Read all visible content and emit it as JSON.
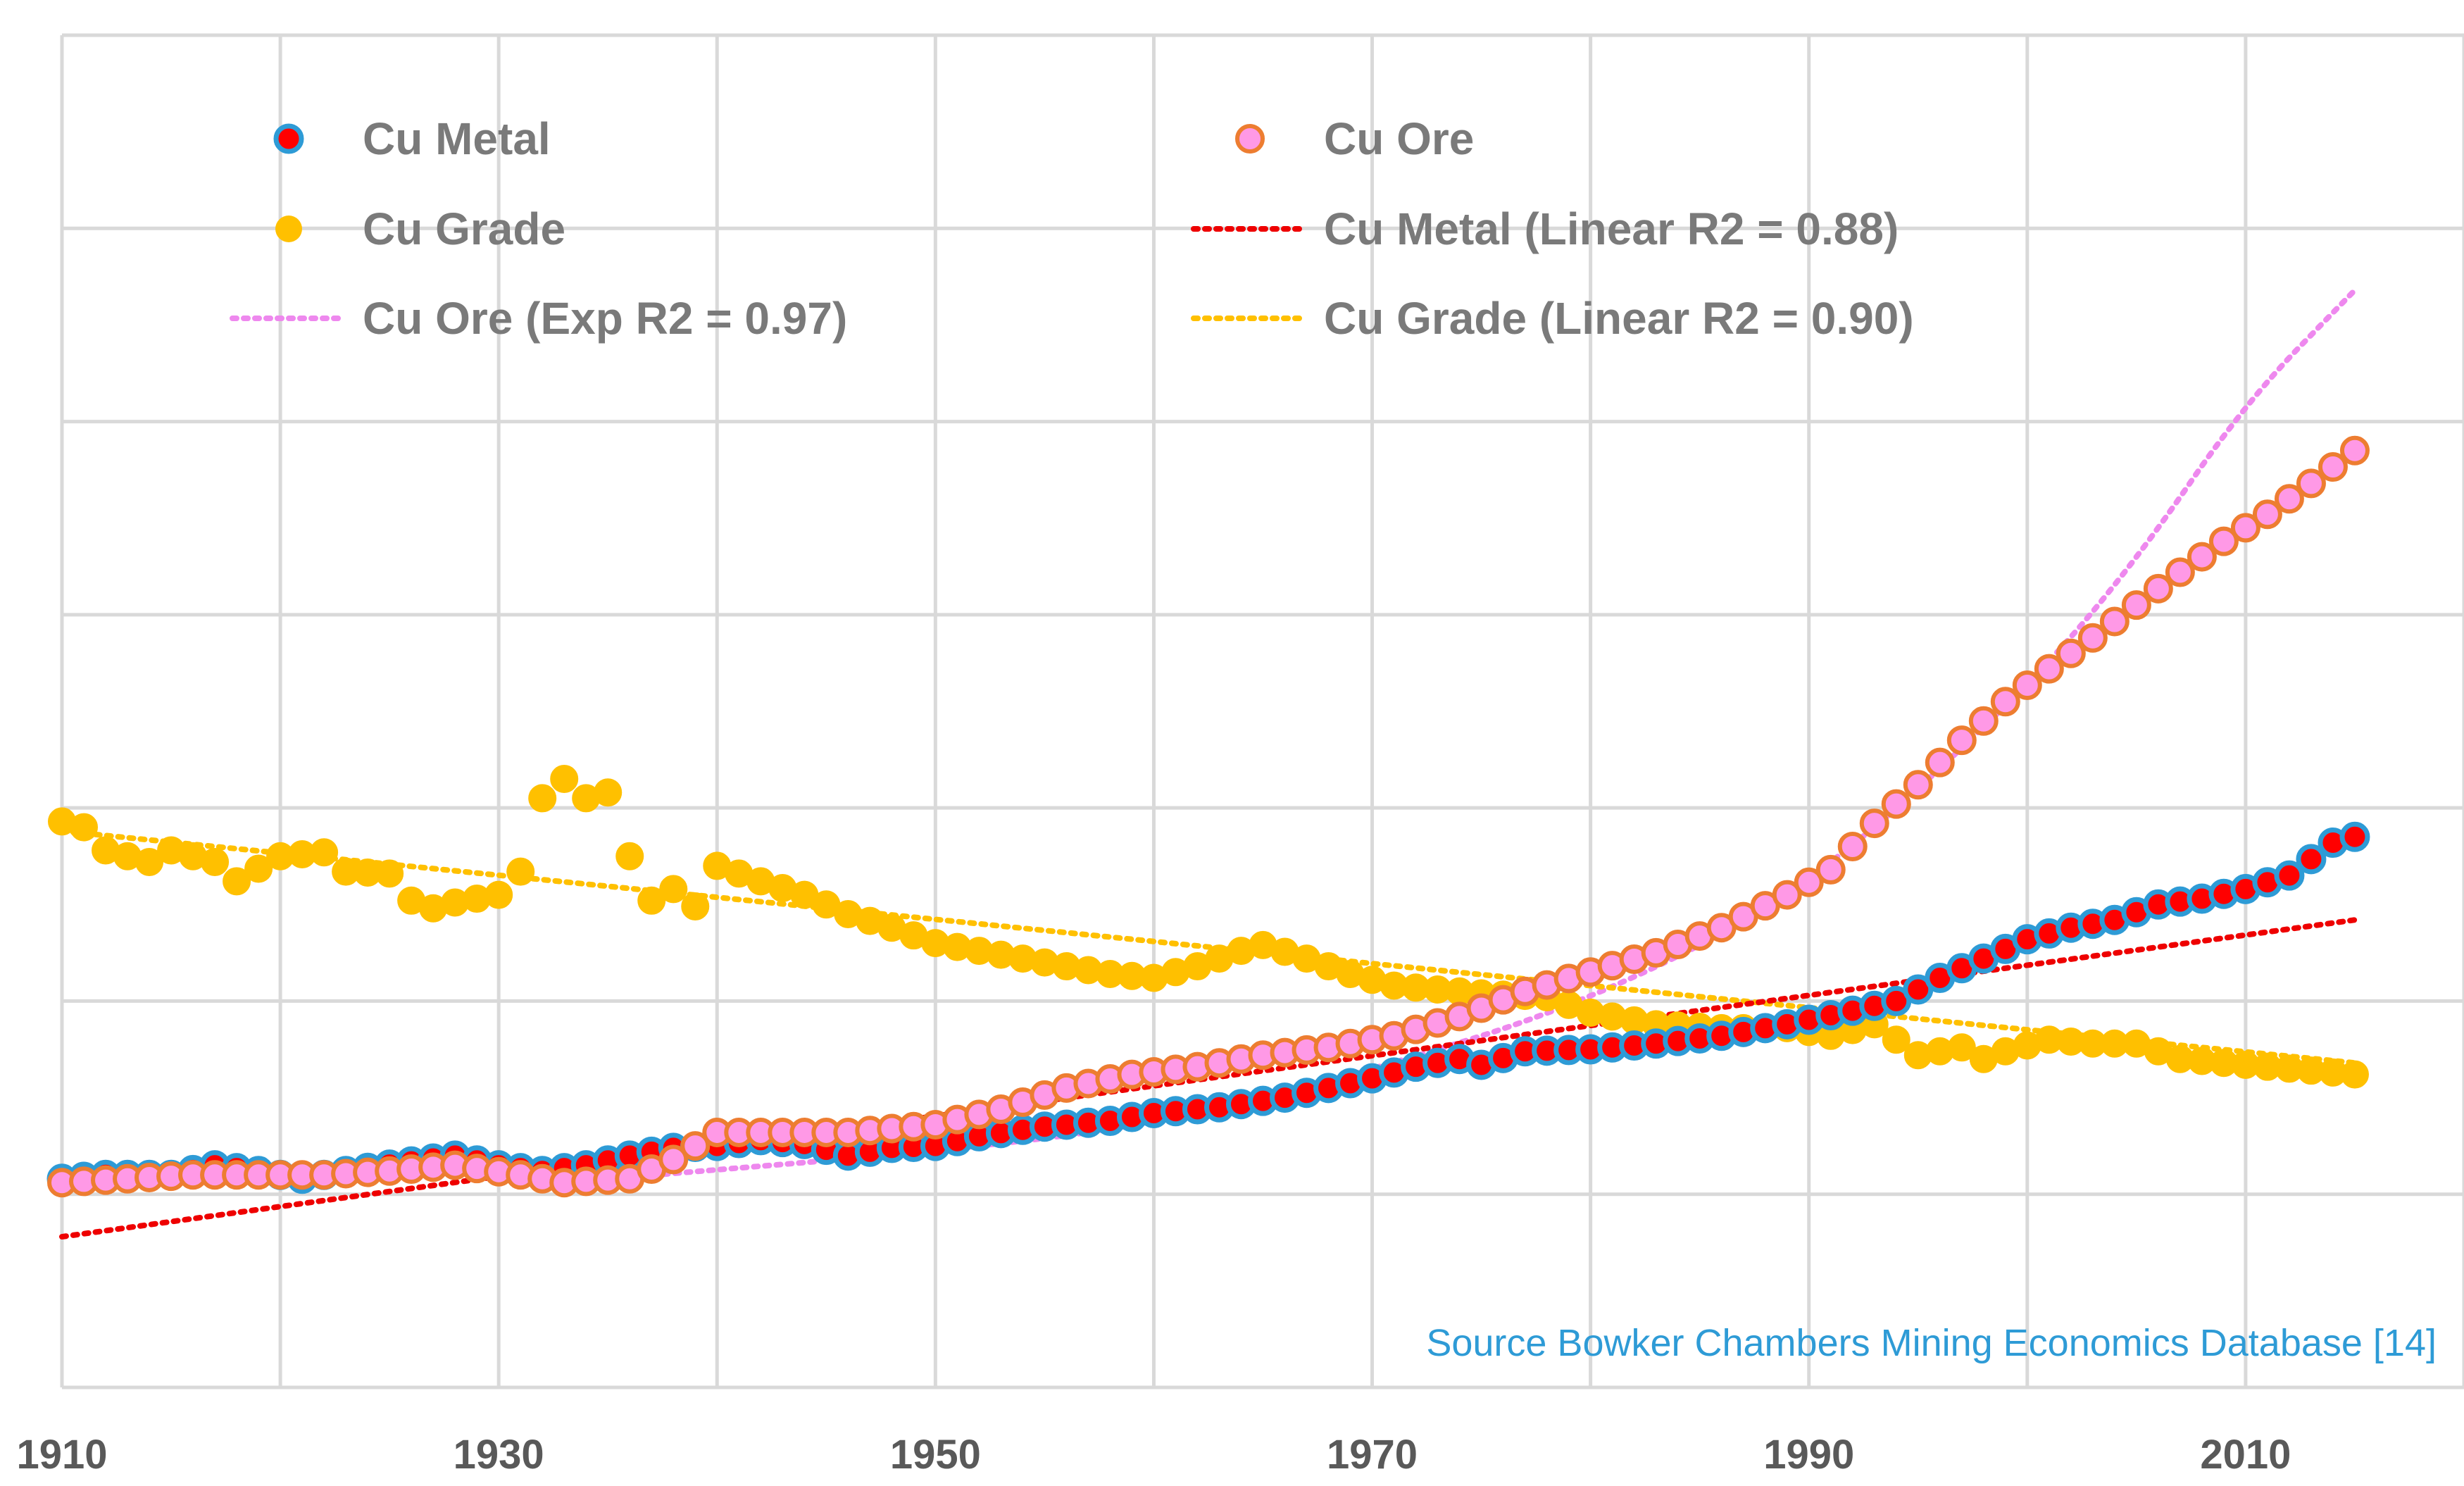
{
  "colors": {
    "grid": "#d9d9d9",
    "metal_fill": "#ff0000",
    "metal_edge": "#2e9bd6",
    "ore_fill": "#ff99e6",
    "ore_edge": "#ed7d31",
    "grade": "#ffc000",
    "metal_trend": "#ee0000",
    "ore_trend": "#ee88ee",
    "grade_trend": "#ffc000",
    "source_text": "#2e9bd6"
  },
  "chart_data": {
    "type": "scatter",
    "title": "",
    "xlabel": "",
    "ylabel": "",
    "xlim": [
      1910,
      2020
    ],
    "ylim": [
      -1,
      6
    ],
    "x_ticks": [
      "1910",
      "1930",
      "1950",
      "1970",
      "1990",
      "2010"
    ],
    "grid": true,
    "legend_position": "top",
    "note": "y values in relative index units read from gridlines (no y tick labels shown)",
    "series": [
      {
        "name": "Cu Metal",
        "marker": "circle-filled",
        "points": [
          [
            1910,
            0.08
          ],
          [
            1912,
            0.1
          ],
          [
            1915,
            0.1
          ],
          [
            1917,
            0.15
          ],
          [
            1919,
            0.12
          ],
          [
            1921,
            0.08
          ],
          [
            1923,
            0.12
          ],
          [
            1926,
            0.17
          ],
          [
            1928,
            0.2
          ],
          [
            1930,
            0.15
          ],
          [
            1932,
            0.12
          ],
          [
            1934,
            0.15
          ],
          [
            1936,
            0.2
          ],
          [
            1938,
            0.24
          ],
          [
            1940,
            0.25
          ],
          [
            1942,
            0.28
          ],
          [
            1944,
            0.26
          ],
          [
            1946,
            0.2
          ],
          [
            1948,
            0.24
          ],
          [
            1950,
            0.25
          ],
          [
            1952,
            0.3
          ],
          [
            1955,
            0.35
          ],
          [
            1958,
            0.38
          ],
          [
            1960,
            0.42
          ],
          [
            1963,
            0.45
          ],
          [
            1966,
            0.5
          ],
          [
            1968,
            0.55
          ],
          [
            1970,
            0.6
          ],
          [
            1972,
            0.66
          ],
          [
            1974,
            0.7
          ],
          [
            1975,
            0.67
          ],
          [
            1977,
            0.74
          ],
          [
            1980,
            0.75
          ],
          [
            1983,
            0.78
          ],
          [
            1986,
            0.82
          ],
          [
            1989,
            0.88
          ],
          [
            1992,
            0.95
          ],
          [
            1994,
            1.0
          ],
          [
            1996,
            1.12
          ],
          [
            1998,
            1.22
          ],
          [
            2000,
            1.32
          ],
          [
            2002,
            1.38
          ],
          [
            2004,
            1.42
          ],
          [
            2006,
            1.5
          ],
          [
            2008,
            1.53
          ],
          [
            2010,
            1.58
          ],
          [
            2012,
            1.65
          ],
          [
            2014,
            1.82
          ],
          [
            2015,
            1.85
          ]
        ]
      },
      {
        "name": "Cu Ore",
        "marker": "circle-filled",
        "points": [
          [
            1910,
            0.06
          ],
          [
            1913,
            0.08
          ],
          [
            1916,
            0.1
          ],
          [
            1919,
            0.1
          ],
          [
            1922,
            0.1
          ],
          [
            1925,
            0.12
          ],
          [
            1928,
            0.15
          ],
          [
            1931,
            0.1
          ],
          [
            1933,
            0.06
          ],
          [
            1936,
            0.08
          ],
          [
            1938,
            0.18
          ],
          [
            1940,
            0.32
          ],
          [
            1943,
            0.32
          ],
          [
            1946,
            0.32
          ],
          [
            1948,
            0.34
          ],
          [
            1950,
            0.36
          ],
          [
            1953,
            0.44
          ],
          [
            1956,
            0.55
          ],
          [
            1959,
            0.62
          ],
          [
            1962,
            0.66
          ],
          [
            1965,
            0.72
          ],
          [
            1968,
            0.76
          ],
          [
            1971,
            0.82
          ],
          [
            1974,
            0.92
          ],
          [
            1977,
            1.05
          ],
          [
            1980,
            1.15
          ],
          [
            1983,
            1.25
          ],
          [
            1986,
            1.38
          ],
          [
            1989,
            1.55
          ],
          [
            1991,
            1.68
          ],
          [
            1993,
            1.92
          ],
          [
            1995,
            2.12
          ],
          [
            1997,
            2.35
          ],
          [
            1999,
            2.55
          ],
          [
            2001,
            2.72
          ],
          [
            2003,
            2.88
          ],
          [
            2005,
            3.05
          ],
          [
            2007,
            3.22
          ],
          [
            2009,
            3.38
          ],
          [
            2011,
            3.52
          ],
          [
            2013,
            3.68
          ],
          [
            2015,
            3.85
          ]
        ]
      },
      {
        "name": "Cu Grade",
        "marker": "circle-filled",
        "points": [
          [
            1910,
            1.93
          ],
          [
            1911,
            1.9
          ],
          [
            1912,
            1.78
          ],
          [
            1914,
            1.72
          ],
          [
            1915,
            1.78
          ],
          [
            1917,
            1.72
          ],
          [
            1918,
            1.62
          ],
          [
            1920,
            1.75
          ],
          [
            1922,
            1.77
          ],
          [
            1923,
            1.67
          ],
          [
            1925,
            1.66
          ],
          [
            1926,
            1.52
          ],
          [
            1927,
            1.48
          ],
          [
            1928,
            1.51
          ],
          [
            1930,
            1.55
          ],
          [
            1931,
            1.67
          ],
          [
            1932,
            2.05
          ],
          [
            1933,
            2.15
          ],
          [
            1934,
            2.05
          ],
          [
            1935,
            2.08
          ],
          [
            1936,
            1.75
          ],
          [
            1937,
            1.52
          ],
          [
            1938,
            1.58
          ],
          [
            1939,
            1.49
          ],
          [
            1940,
            1.7
          ],
          [
            1942,
            1.62
          ],
          [
            1944,
            1.55
          ],
          [
            1946,
            1.45
          ],
          [
            1948,
            1.38
          ],
          [
            1950,
            1.3
          ],
          [
            1952,
            1.26
          ],
          [
            1954,
            1.22
          ],
          [
            1956,
            1.18
          ],
          [
            1958,
            1.14
          ],
          [
            1960,
            1.12
          ],
          [
            1962,
            1.18
          ],
          [
            1964,
            1.26
          ],
          [
            1965,
            1.29
          ],
          [
            1967,
            1.22
          ],
          [
            1969,
            1.14
          ],
          [
            1971,
            1.08
          ],
          [
            1973,
            1.06
          ],
          [
            1975,
            1.04
          ],
          [
            1978,
            1.02
          ],
          [
            1980,
            0.94
          ],
          [
            1983,
            0.88
          ],
          [
            1986,
            0.86
          ],
          [
            1989,
            0.86
          ],
          [
            1991,
            0.82
          ],
          [
            1993,
            0.88
          ],
          [
            1994,
            0.8
          ],
          [
            1995,
            0.72
          ],
          [
            1997,
            0.76
          ],
          [
            1998,
            0.7
          ],
          [
            1999,
            0.74
          ],
          [
            2001,
            0.8
          ],
          [
            2003,
            0.78
          ],
          [
            2005,
            0.78
          ],
          [
            2007,
            0.7
          ],
          [
            2009,
            0.68
          ],
          [
            2011,
            0.66
          ],
          [
            2013,
            0.64
          ],
          [
            2015,
            0.62
          ]
        ]
      },
      {
        "name": "Cu Metal (Linear R2 = 0.88)",
        "marker": "dotted-line",
        "points": [
          [
            1910,
            -0.22
          ],
          [
            2015,
            1.42
          ]
        ]
      },
      {
        "name": "Cu Ore (Exp R2 = 0.97)",
        "marker": "dotted-line",
        "points": [
          [
            1935,
            0.08
          ],
          [
            1950,
            0.22
          ],
          [
            1960,
            0.36
          ],
          [
            1970,
            0.64
          ],
          [
            1980,
            1.0
          ],
          [
            1990,
            1.58
          ],
          [
            2000,
            2.62
          ],
          [
            2005,
            3.28
          ],
          [
            2010,
            4.1
          ],
          [
            2015,
            4.68
          ]
        ]
      },
      {
        "name": "Cu Grade (Linear R2 = 0.90)",
        "marker": "dotted-line",
        "points": [
          [
            1910,
            1.88
          ],
          [
            2015,
            0.68
          ]
        ]
      }
    ],
    "annotation": "Source Bowker Chambers Mining Economics Database [14]"
  },
  "legend": {
    "items": [
      {
        "label": "Cu Metal",
        "key": "metal"
      },
      {
        "label": "Cu Ore",
        "key": "ore"
      },
      {
        "label": "Cu Grade",
        "key": "grade"
      },
      {
        "label": "Cu Metal (Linear R2 = 0.88)",
        "key": "metal_trend"
      },
      {
        "label": "Cu Ore (Exp R2 = 0.97)",
        "key": "ore_trend"
      },
      {
        "label": "Cu Grade (Linear R2 = 0.90)",
        "key": "grade_trend"
      }
    ]
  }
}
